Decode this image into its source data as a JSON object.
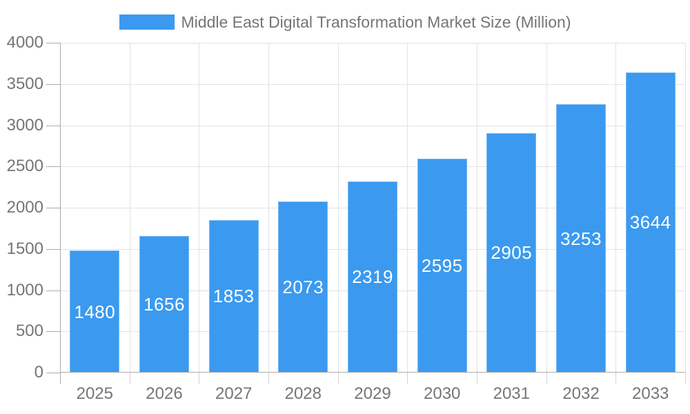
{
  "legend": {
    "items": [
      {
        "label": "Middle East Digital Transformation Market Size (Million)",
        "swatch_color": "#3B9AEF"
      }
    ]
  },
  "chart_data": {
    "type": "bar",
    "title": "Middle East Digital Transformation Market Size (Million)",
    "categories": [
      "2025",
      "2026",
      "2027",
      "2028",
      "2029",
      "2030",
      "2031",
      "2032",
      "2033"
    ],
    "series": [
      {
        "name": "Middle East Digital Transformation Market Size (Million)",
        "color": "#3B9AEF",
        "values": [
          1480,
          1656,
          1853,
          2073,
          2319,
          2595,
          2905,
          3253,
          3644
        ]
      }
    ],
    "xlabel": "",
    "ylabel": "",
    "ylim": [
      0,
      4000
    ],
    "ytick_interval": 500,
    "yticks": [
      0,
      500,
      1000,
      1500,
      2000,
      2500,
      3000,
      3500,
      4000
    ],
    "grid": true,
    "legend_position": "top-center",
    "value_labels": "inside-center"
  },
  "colors": {
    "bar": "#3B9AEF",
    "grid": "#E2E2E2",
    "axis": "#ABABAB",
    "y_tick": "#ABABAB",
    "x_tick": "#D2D2D2",
    "text": "#757575",
    "bar_label": "#FFFFFF",
    "background": "#FFFFFF"
  }
}
